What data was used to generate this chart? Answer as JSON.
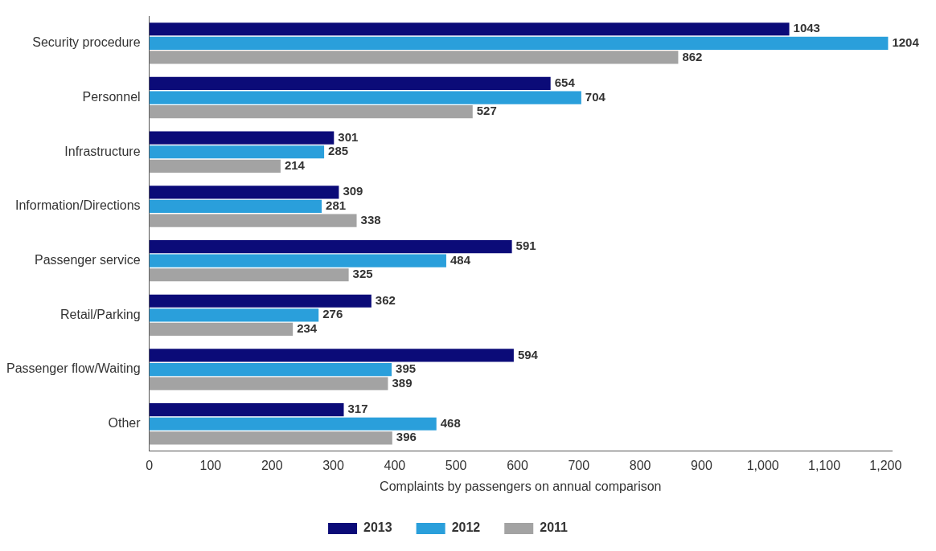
{
  "chart_data": {
    "type": "bar",
    "orientation": "horizontal",
    "xlabel": "Complaints by passengers on annual comparison",
    "categories": [
      "Security procedure",
      "Personnel",
      "Infrastructure",
      "Information/Directions",
      "Passenger service",
      "Retail/Parking",
      "Passenger flow/Waiting",
      "Other"
    ],
    "series": [
      {
        "name": "2013",
        "color": "#0b0b78",
        "values": [
          1043,
          654,
          301,
          309,
          591,
          362,
          594,
          317
        ]
      },
      {
        "name": "2012",
        "color": "#2a9fdb",
        "values": [
          1204,
          704,
          285,
          281,
          484,
          276,
          395,
          468
        ]
      },
      {
        "name": "2011",
        "color": "#a3a3a3",
        "values": [
          862,
          527,
          214,
          338,
          325,
          234,
          389,
          396
        ]
      }
    ],
    "xlim": [
      0,
      1210
    ],
    "xticks": [
      0,
      100,
      200,
      300,
      400,
      500,
      600,
      700,
      800,
      900,
      {
        "value": 1000,
        "label": "1,000"
      },
      {
        "value": 1100,
        "label": "1,100"
      },
      {
        "value": 1200,
        "label": "1,200"
      }
    ],
    "grid": false,
    "legend": "bottom",
    "data_labels": true
  }
}
